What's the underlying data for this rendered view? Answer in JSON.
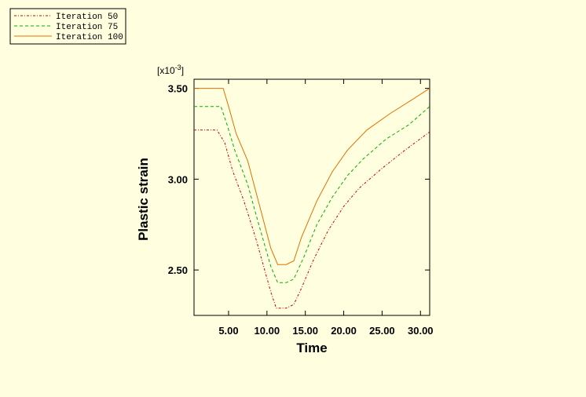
{
  "chart_data": {
    "type": "line",
    "xlabel": "Time",
    "ylabel": "Plastic strain",
    "y_exponent_label": {
      "base": "[x10",
      "exp": "-3",
      "close": "]"
    },
    "xlim": [
      0.5,
      31.2
    ],
    "ylim": [
      2.25,
      3.55
    ],
    "x_ticks": [
      5,
      10,
      15,
      20,
      25,
      30
    ],
    "x_tick_labels": [
      "5.00",
      "10.00",
      "15.00",
      "20.00",
      "25.00",
      "30.00"
    ],
    "y_ticks": [
      2.5,
      3.0,
      3.5
    ],
    "y_tick_labels": [
      "2.50",
      "3.00",
      "3.50"
    ],
    "grid": false,
    "legend_position": "top-left outside",
    "series": [
      {
        "name": "Iteration 50",
        "color": "#cc0000",
        "dash": "dash-dot",
        "x": [
          0.5,
          3.5,
          4.5,
          5.5,
          7,
          8.5,
          10.5,
          11.2,
          12.5,
          13.5,
          14.5,
          16,
          18,
          20,
          22,
          25,
          28,
          31.2
        ],
        "y": [
          3.27,
          3.27,
          3.2,
          3.05,
          2.88,
          2.68,
          2.38,
          2.29,
          2.29,
          2.31,
          2.4,
          2.55,
          2.72,
          2.85,
          2.95,
          3.06,
          3.16,
          3.26
        ]
      },
      {
        "name": "Iteration 75",
        "color": "#00b000",
        "dash": "dash",
        "x": [
          0.5,
          4,
          4.8,
          5.8,
          7.5,
          9,
          10.5,
          11.4,
          12.5,
          13.5,
          14.8,
          16.5,
          18.5,
          20.5,
          22.5,
          25.5,
          28.5,
          31.2
        ],
        "y": [
          3.4,
          3.4,
          3.3,
          3.16,
          2.97,
          2.74,
          2.52,
          2.43,
          2.43,
          2.45,
          2.57,
          2.75,
          2.9,
          3.02,
          3.11,
          3.22,
          3.3,
          3.4
        ]
      },
      {
        "name": "Iteration 100",
        "color": "#e07000",
        "dash": "solid",
        "x": [
          0.5,
          4.3,
          5,
          6,
          7.5,
          9,
          10.5,
          11.4,
          12.5,
          13.5,
          14.5,
          16.5,
          18.5,
          20.5,
          23,
          26,
          29,
          31.2
        ],
        "y": [
          3.5,
          3.5,
          3.4,
          3.25,
          3.1,
          2.86,
          2.62,
          2.53,
          2.53,
          2.55,
          2.68,
          2.88,
          3.04,
          3.16,
          3.27,
          3.36,
          3.44,
          3.5
        ]
      }
    ]
  }
}
